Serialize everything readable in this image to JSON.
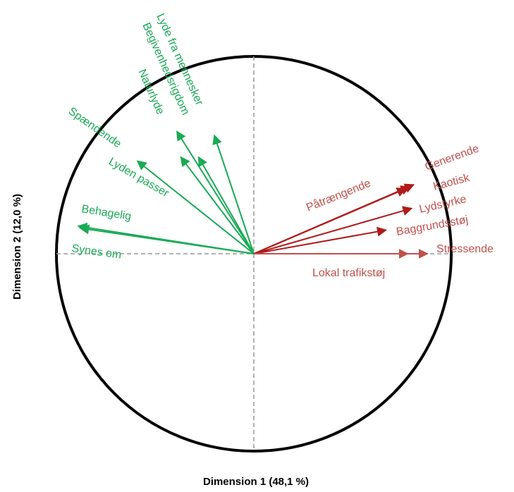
{
  "chart_data": {
    "type": "scatter",
    "subtype": "correlation-circle",
    "xlabel": "Dimension 1 (48,1 %)",
    "ylabel": "Dimension 2 (12,0 %)",
    "xlim": [
      -1,
      1
    ],
    "ylim": [
      -1,
      1
    ],
    "grid": false,
    "unit_circle": true,
    "colors": {
      "positive": "#1aaa55",
      "negative": "#b01a1a",
      "negative_label": "#c0504d",
      "circle": "#000000",
      "axis_lines": "#999999"
    },
    "series": [
      {
        "group": "positive",
        "points": [
          {
            "label": "Lyde fra mennesker",
            "x": -0.2,
            "y": 0.6
          },
          {
            "label": "Begivenhedsrigdom",
            "x": -0.28,
            "y": 0.49
          },
          {
            "label": "Naturlyde",
            "x": -0.39,
            "y": 0.62
          },
          {
            "label": "Spændende",
            "x": -0.59,
            "y": 0.47
          },
          {
            "label": "Lyden passer",
            "x": -0.37,
            "y": 0.49
          },
          {
            "label": "Behagelig",
            "x": -0.89,
            "y": 0.14
          },
          {
            "label": "Synes om",
            "x": -0.88,
            "y": 0.13
          }
        ]
      },
      {
        "group": "negative",
        "points": [
          {
            "label": "Generende",
            "x": 0.81,
            "y": 0.35
          },
          {
            "label": "Kaotisk",
            "x": 0.79,
            "y": 0.34
          },
          {
            "label": "Påtrængende",
            "x": 0.77,
            "y": 0.33
          },
          {
            "label": "Lydstyrke",
            "x": 0.8,
            "y": 0.23
          },
          {
            "label": "Baggrundsstøj",
            "x": 0.67,
            "y": 0.12
          },
          {
            "label": "Stressende",
            "x": 0.88,
            "y": 0.0
          },
          {
            "label": "Lokal trafikstøj",
            "x": 0.78,
            "y": 0.0
          }
        ]
      }
    ]
  }
}
